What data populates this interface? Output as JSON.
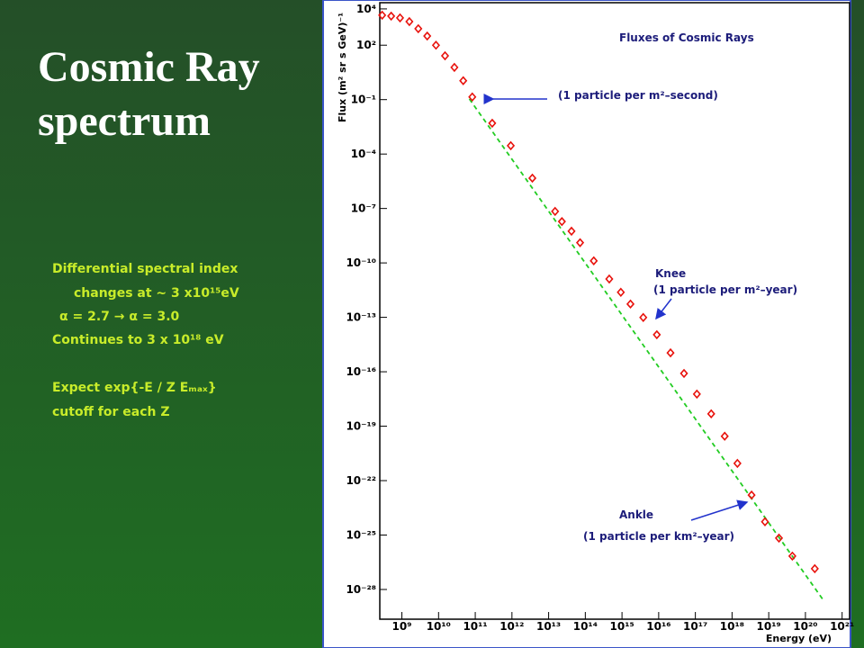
{
  "slide": {
    "title": "Cosmic Ray spectrum",
    "notes": [
      "Differential spectral index",
      "changes at ~ 3 x10¹⁵eV",
      "α = 2.7 → α = 3.0",
      "Continues to 3 x 10¹⁸ eV",
      "Expect exp{-E / Z Eₘₐₓ}",
      "cutoff for each Z"
    ]
  },
  "chart_data": {
    "type": "scatter",
    "title": "Fluxes of Cosmic Rays",
    "x_label": "Energy (eV)",
    "y_label": "Flux (m² sr s GeV)⁻¹",
    "log_x": true,
    "log_y": true,
    "xlim": [
      250000000.0,
      1.6e+21
    ],
    "ylim": [
      2.3e-30,
      22000.0
    ],
    "xticks": [
      {
        "value": 1000000000.0,
        "label": "10⁹"
      },
      {
        "value": 10000000000.0,
        "label": "10¹⁰"
      },
      {
        "value": 100000000000.0,
        "label": "10¹¹"
      },
      {
        "value": 1000000000000.0,
        "label": "10¹²"
      },
      {
        "value": 10000000000000.0,
        "label": "10¹³"
      },
      {
        "value": 100000000000000.0,
        "label": "10¹⁴"
      },
      {
        "value": 1000000000000000.0,
        "label": "10¹⁵"
      },
      {
        "value": 1e+16,
        "label": "10¹⁶"
      },
      {
        "value": 1e+17,
        "label": "10¹⁷"
      },
      {
        "value": 1e+18,
        "label": "10¹⁸"
      },
      {
        "value": 1e+19,
        "label": "10¹⁹"
      },
      {
        "value": 1e+20,
        "label": "10²⁰"
      },
      {
        "value": 1e+21,
        "label": "10²¹"
      }
    ],
    "yticks": [
      {
        "value": 10000.0,
        "label": "10⁴"
      },
      {
        "value": 100.0,
        "label": "10²"
      },
      {
        "value": 0.1,
        "label": "10⁻¹"
      },
      {
        "value": 0.0001,
        "label": "10⁻⁴"
      },
      {
        "value": 1e-07,
        "label": "10⁻⁷"
      },
      {
        "value": 1e-10,
        "label": "10⁻¹⁰"
      },
      {
        "value": 1e-13,
        "label": "10⁻¹³"
      },
      {
        "value": 1e-16,
        "label": "10⁻¹⁶"
      },
      {
        "value": 1e-19,
        "label": "10⁻¹⁹"
      },
      {
        "value": 1e-22,
        "label": "10⁻²²"
      },
      {
        "value": 1e-25,
        "label": "10⁻²⁵"
      },
      {
        "value": 1e-28,
        "label": "10⁻²⁸"
      }
    ],
    "x": [
      290000000.0,
      510000000.0,
      890000000.0,
      1600000000.0,
      2800000000.0,
      4900000000.0,
      8500000000.0,
      15000000000.0,
      27000000000.0,
      47000000000.0,
      83000000000.0,
      290000000000.0,
      930000000000.0,
      3600000000000.0,
      15000000000000.0,
      23000000000000.0,
      42000000000000.0,
      72000000000000.0,
      170000000000000.0,
      450000000000000.0,
      930000000000000.0,
      1700000000000000.0,
      3800000000000000.0,
      8900000000000000.0,
      2.1e+16,
      4.9e+16,
      1.1e+17,
      2.7e+17,
      6.3e+17,
      1.4e+18,
      3.4e+18,
      7.9e+18,
      1.9e+19,
      4.4e+19,
      1.8e+20
    ],
    "values": [
      4500,
      4000,
      3200,
      2000,
      810,
      320,
      100,
      26,
      6.0,
      1.1,
      0.14,
      0.005,
      0.00029,
      4.7e-06,
      6.9e-08,
      1.9e-08,
      5.6e-09,
      1.3e-09,
      1.3e-10,
      1.3e-11,
      2.4e-12,
      5.4e-13,
      9.8e-14,
      1.1e-14,
      1.1e-15,
      8.1e-17,
      5.9e-18,
      4.8e-19,
      2.8e-20,
      8.9e-22,
      1.6e-23,
      5.4e-25,
      6.8e-26,
      6.9e-27,
      1.4e-27
    ],
    "color": "#e8120c",
    "fit_line": {
      "x": [
        69000000000.0,
        3.2e+20
      ],
      "values": [
        0.11,
        2.3e-29
      ],
      "color": "#22cc22"
    },
    "annotations": [
      "(1 particle per m²–second)",
      "Knee",
      "(1 particle per m²–year)",
      "Ankle",
      "(1 particle per km²–year)"
    ]
  }
}
